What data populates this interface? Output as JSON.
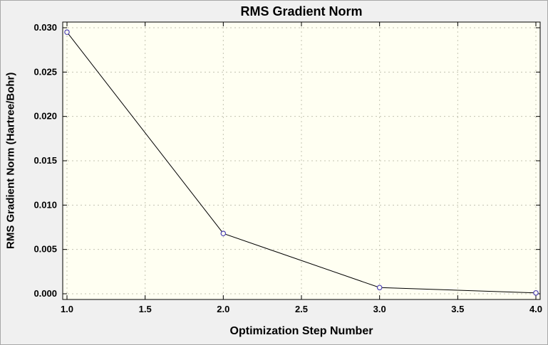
{
  "chart_data": {
    "type": "line",
    "title": "RMS Gradient Norm",
    "xlabel": "Optimization Step Number",
    "ylabel": "RMS Gradient Norm (Hartree/Bohr)",
    "x": [
      1.0,
      2.0,
      3.0,
      4.0
    ],
    "y": [
      0.0295,
      0.0068,
      0.0007,
      0.0001
    ],
    "xlim": [
      1.0,
      4.0
    ],
    "ylim": [
      0.0,
      0.03
    ],
    "x_ticks": [
      {
        "v": 1.0,
        "label": "1.0"
      },
      {
        "v": 1.5,
        "label": "1.5"
      },
      {
        "v": 2.0,
        "label": "2.0"
      },
      {
        "v": 2.5,
        "label": "2.5"
      },
      {
        "v": 3.0,
        "label": "3.0"
      },
      {
        "v": 3.5,
        "label": "3.5"
      },
      {
        "v": 4.0,
        "label": "4.0"
      }
    ],
    "y_ticks": [
      {
        "v": 0.0,
        "label": "0.000"
      },
      {
        "v": 0.005,
        "label": "0.005"
      },
      {
        "v": 0.01,
        "label": "0.010"
      },
      {
        "v": 0.015,
        "label": "0.015"
      },
      {
        "v": 0.02,
        "label": "0.020"
      },
      {
        "v": 0.025,
        "label": "0.025"
      },
      {
        "v": 0.03,
        "label": "0.030"
      }
    ],
    "grid": "dashed",
    "legend": "none",
    "marker": "open-circle",
    "colors": {
      "line": "#000000",
      "marker_stroke": "#4a3fb5",
      "marker_fill": "#fffff2",
      "plot_background": "#fffff2",
      "page_background": "#f0f0f0",
      "grid": "#c3c3b2",
      "frame": "#000000",
      "text": "#000000"
    }
  }
}
